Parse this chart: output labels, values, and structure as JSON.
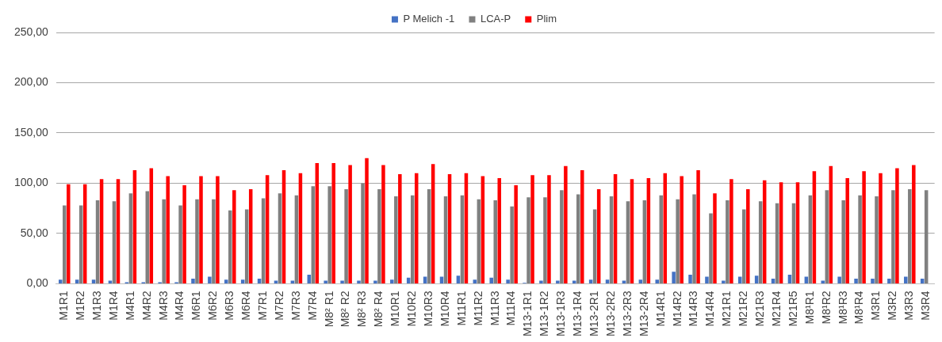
{
  "chart_data": {
    "type": "bar",
    "categories": [
      "M1R1",
      "M1R2",
      "M1R3",
      "M1R4",
      "M4R1",
      "M4R2",
      "M4R3",
      "M4R4",
      "M6R1",
      "M6R2",
      "M6R3",
      "M6R4",
      "M7R1",
      "M7R2",
      "M7R3",
      "M7R4",
      "M8² R1",
      "M8² R2",
      "M8² R3",
      "M8² R4",
      "M10R1",
      "M10R2",
      "M10R3",
      "M10R4",
      "M11R1",
      "M11R2",
      "M11R3",
      "M11R4",
      "M13-1R1",
      "M13-1R2",
      "M13-1R3",
      "M13-1R4",
      "M13-2R1",
      "M13-2R2",
      "M13-2R3",
      "M13-2R4",
      "M14R1",
      "M14R2",
      "M14R3",
      "M14R4",
      "M21R1",
      "M21R2",
      "M21R3",
      "M21R4",
      "M21R5",
      "M8¹R1",
      "M8¹R2",
      "M8¹R3",
      "M8¹R4",
      "M3R1",
      "M3R2",
      "M3R3",
      "M3R4"
    ],
    "series": [
      {
        "name": "P Melich -1",
        "color": "#4472c4",
        "values": [
          4,
          4,
          4,
          3,
          1.5,
          1.5,
          1.5,
          1.5,
          5,
          7,
          4,
          4,
          5,
          3,
          3,
          9,
          3,
          3,
          3,
          3,
          4,
          6,
          7,
          7,
          8,
          4,
          6,
          4,
          1,
          3,
          3,
          3,
          4,
          4,
          3,
          4,
          4,
          12,
          9,
          7,
          3,
          7,
          8,
          5,
          9,
          7,
          3,
          7,
          5,
          5,
          5,
          7,
          5
        ]
      },
      {
        "name": "LCA-P",
        "color": "#808080",
        "values": [
          78,
          78,
          83,
          82,
          90,
          92,
          84,
          78,
          84,
          84,
          73,
          74,
          85,
          90,
          88,
          97,
          97,
          94,
          100,
          94,
          87,
          88,
          94,
          87,
          88,
          84,
          83,
          77,
          86,
          86,
          93,
          89,
          74,
          87,
          82,
          83,
          88,
          84,
          89,
          70,
          83,
          74,
          82,
          80,
          80,
          88,
          93,
          83,
          88,
          87,
          93,
          94,
          93
        ]
      },
      {
        "name": "Plim",
        "color": "#ff0000",
        "values": [
          99,
          99,
          104,
          104,
          113,
          115,
          107,
          98,
          107,
          107,
          93,
          94,
          108,
          113,
          110,
          120,
          120,
          118,
          125,
          118,
          109,
          110,
          119,
          109,
          110,
          107,
          105,
          98,
          108,
          108,
          117,
          113,
          94,
          109,
          104,
          105,
          110,
          107,
          113,
          90,
          104,
          94,
          103,
          101,
          101,
          112,
          117,
          105,
          112,
          110,
          115,
          118,
          null
        ]
      }
    ],
    "ylim": [
      0,
      250
    ],
    "yticks": [
      {
        "value": 0,
        "label": "0,00"
      },
      {
        "value": 50,
        "label": "50,00"
      },
      {
        "value": 100,
        "label": "100,00"
      },
      {
        "value": 150,
        "label": "150,00"
      },
      {
        "value": 200,
        "label": "200,00"
      },
      {
        "value": 250,
        "label": "250,00"
      }
    ],
    "grid": "y",
    "legend": "top"
  }
}
